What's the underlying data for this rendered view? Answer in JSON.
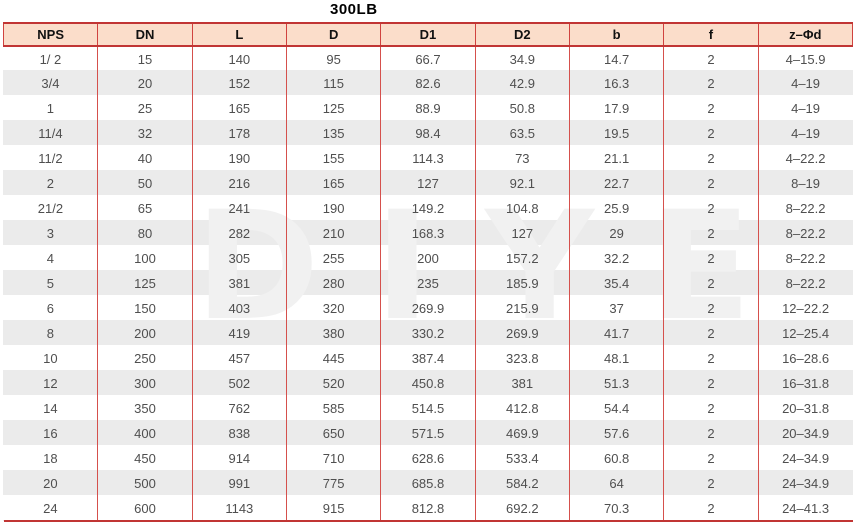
{
  "title": "300LB",
  "watermark": "DIYE",
  "colors": {
    "header_bg": "#fbddca",
    "grid_red": "#d0423f",
    "rule_red": "#c13534",
    "row_alt_bg": "#ebebeb",
    "header_text": "#111111",
    "body_text": "#4f4f4f",
    "watermark_gray": "#f1f1f1"
  },
  "table": {
    "headers": [
      "NPS",
      "DN",
      "L",
      "D",
      "D1",
      "D2",
      "b",
      "f",
      "z–Φd"
    ],
    "rows": [
      [
        "1/ 2",
        "15",
        "140",
        "95",
        "66.7",
        "34.9",
        "14.7",
        "2",
        "4–15.9"
      ],
      [
        "3/4",
        "20",
        "152",
        "115",
        "82.6",
        "42.9",
        "16.3",
        "2",
        "4–19"
      ],
      [
        "1",
        "25",
        "165",
        "125",
        "88.9",
        "50.8",
        "17.9",
        "2",
        "4–19"
      ],
      [
        "11/4",
        "32",
        "178",
        "135",
        "98.4",
        "63.5",
        "19.5",
        "2",
        "4–19"
      ],
      [
        "11/2",
        "40",
        "190",
        "155",
        "114.3",
        "73",
        "21.1",
        "2",
        "4–22.2"
      ],
      [
        "2",
        "50",
        "216",
        "165",
        "127",
        "92.1",
        "22.7",
        "2",
        "8–19"
      ],
      [
        "21/2",
        "65",
        "241",
        "190",
        "149.2",
        "104.8",
        "25.9",
        "2",
        "8–22.2"
      ],
      [
        "3",
        "80",
        "282",
        "210",
        "168.3",
        "127",
        "29",
        "2",
        "8–22.2"
      ],
      [
        "4",
        "100",
        "305",
        "255",
        "200",
        "157.2",
        "32.2",
        "2",
        "8–22.2"
      ],
      [
        "5",
        "125",
        "381",
        "280",
        "235",
        "185.9",
        "35.4",
        "2",
        "8–22.2"
      ],
      [
        "6",
        "150",
        "403",
        "320",
        "269.9",
        "215.9",
        "37",
        "2",
        "12–22.2"
      ],
      [
        "8",
        "200",
        "419",
        "380",
        "330.2",
        "269.9",
        "41.7",
        "2",
        "12–25.4"
      ],
      [
        "10",
        "250",
        "457",
        "445",
        "387.4",
        "323.8",
        "48.1",
        "2",
        "16–28.6"
      ],
      [
        "12",
        "300",
        "502",
        "520",
        "450.8",
        "381",
        "51.3",
        "2",
        "16–31.8"
      ],
      [
        "14",
        "350",
        "762",
        "585",
        "514.5",
        "412.8",
        "54.4",
        "2",
        "20–31.8"
      ],
      [
        "16",
        "400",
        "838",
        "650",
        "571.5",
        "469.9",
        "57.6",
        "2",
        "20–34.9"
      ],
      [
        "18",
        "450",
        "914",
        "710",
        "628.6",
        "533.4",
        "60.8",
        "2",
        "24–34.9"
      ],
      [
        "20",
        "500",
        "991",
        "775",
        "685.8",
        "584.2",
        "64",
        "2",
        "24–34.9"
      ],
      [
        "24",
        "600",
        "1143",
        "915",
        "812.8",
        "692.2",
        "70.3",
        "2",
        "24–41.3"
      ]
    ]
  }
}
